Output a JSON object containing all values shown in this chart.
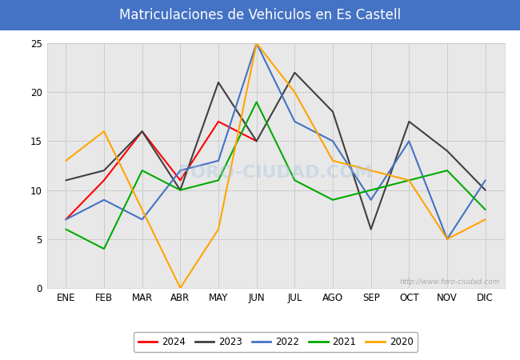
{
  "title": "Matriculaciones de Vehiculos en Es Castell",
  "title_bg_color": "#4472C4",
  "title_text_color": "#FFFFFF",
  "months": [
    "ENE",
    "FEB",
    "MAR",
    "ABR",
    "MAY",
    "JUN",
    "JUL",
    "AGO",
    "SEP",
    "OCT",
    "NOV",
    "DIC"
  ],
  "series": {
    "2024": {
      "color": "#FF0000",
      "data": [
        7,
        11,
        16,
        11,
        17,
        15,
        null,
        null,
        null,
        null,
        null,
        null
      ]
    },
    "2023": {
      "color": "#404040",
      "data": [
        11,
        12,
        16,
        10,
        21,
        15,
        22,
        18,
        6,
        17,
        14,
        10
      ]
    },
    "2022": {
      "color": "#4472C4",
      "data": [
        7,
        9,
        7,
        12,
        13,
        25,
        17,
        15,
        9,
        15,
        5,
        11
      ]
    },
    "2021": {
      "color": "#00AA00",
      "data": [
        6,
        4,
        12,
        10,
        11,
        19,
        11,
        9,
        10,
        11,
        12,
        8
      ]
    },
    "2020": {
      "color": "#FFA500",
      "data": [
        13,
        16,
        8,
        0,
        6,
        25,
        20,
        13,
        12,
        11,
        5,
        7
      ]
    }
  },
  "ylim": [
    0,
    25
  ],
  "yticks": [
    0,
    5,
    10,
    15,
    20,
    25
  ],
  "grid_color": "#CCCCCC",
  "plot_bg_color": "#E8E8E8",
  "fig_bg_color": "#FFFFFF",
  "watermark_text": "http://www.foro-ciudad.com",
  "watermark_overlay": "FORO-CIUDAD.COM",
  "legend_order": [
    "2024",
    "2023",
    "2022",
    "2021",
    "2020"
  ],
  "title_fontsize": 12,
  "tick_fontsize": 8.5,
  "legend_fontsize": 8.5
}
